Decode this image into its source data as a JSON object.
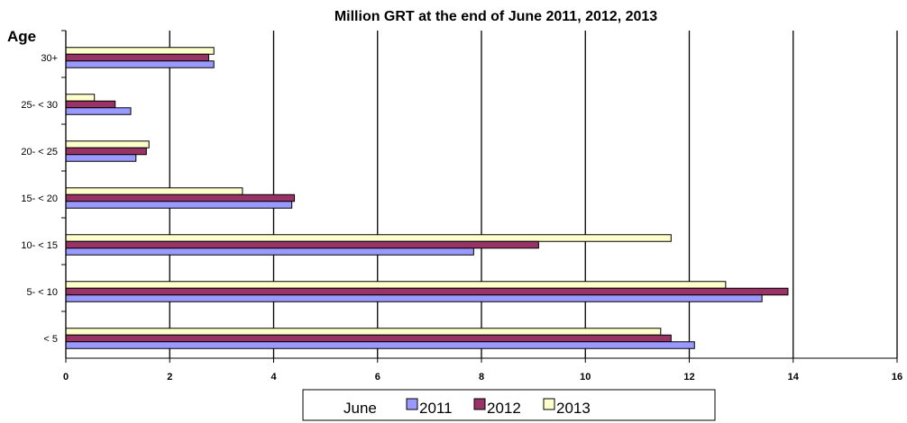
{
  "chart_data": {
    "type": "bar",
    "orientation": "horizontal",
    "title": "Million GRT at the end of June 2011, 2012, 2013",
    "ylabel": "Age",
    "xlabel": "",
    "xlim": [
      0,
      16
    ],
    "x_ticks": [
      "0",
      "2",
      "4",
      "6",
      "8",
      "10",
      "12",
      "14",
      "16"
    ],
    "grid": "vertical",
    "categories": [
      "30+",
      "25- < 30",
      "20- < 25",
      "15- < 20",
      "10- < 15",
      "5- < 10",
      "< 5"
    ],
    "series": [
      {
        "name": "2011",
        "color": "#9999ff",
        "values": [
          2.85,
          1.25,
          1.35,
          4.35,
          7.85,
          13.4,
          12.1
        ]
      },
      {
        "name": "2012",
        "color": "#993366",
        "values": [
          2.75,
          0.95,
          1.55,
          4.4,
          9.1,
          13.9,
          11.65
        ]
      },
      {
        "name": "2013",
        "color": "#ffffcc",
        "values": [
          2.85,
          0.55,
          1.6,
          3.4,
          11.65,
          12.7,
          11.45
        ]
      }
    ],
    "legend": {
      "title": "June",
      "position": "bottom"
    }
  }
}
